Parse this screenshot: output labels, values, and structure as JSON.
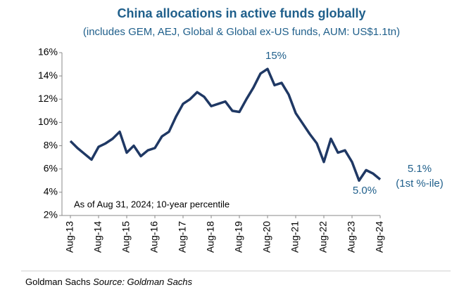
{
  "chart_data": {
    "type": "line",
    "title": "China allocations in active funds globally",
    "subtitle": "(includes GEM, AEJ, Global & Global ex-US funds, AUM: US$1.1tn)",
    "x": [
      "2013-08",
      "2013-11",
      "2014-02",
      "2014-05",
      "2014-08",
      "2014-11",
      "2015-02",
      "2015-05",
      "2015-08",
      "2015-11",
      "2016-02",
      "2016-05",
      "2016-08",
      "2016-11",
      "2017-02",
      "2017-05",
      "2017-08",
      "2017-11",
      "2018-02",
      "2018-05",
      "2018-08",
      "2018-11",
      "2019-02",
      "2019-05",
      "2019-08",
      "2019-11",
      "2020-02",
      "2020-05",
      "2020-08",
      "2020-11",
      "2021-02",
      "2021-05",
      "2021-08",
      "2021-11",
      "2022-02",
      "2022-05",
      "2022-08",
      "2022-11",
      "2023-02",
      "2023-05",
      "2023-08",
      "2023-11",
      "2024-02",
      "2024-05",
      "2024-08"
    ],
    "series": [
      {
        "name": "China allocation",
        "color": "#1f3864",
        "values": [
          8.4,
          7.8,
          7.3,
          6.8,
          7.9,
          8.2,
          8.6,
          9.2,
          7.4,
          8.0,
          7.1,
          7.6,
          7.8,
          8.8,
          9.2,
          10.5,
          11.6,
          12.0,
          12.6,
          12.2,
          11.4,
          11.6,
          11.8,
          11.0,
          10.9,
          12.0,
          13.0,
          14.2,
          14.6,
          13.2,
          13.4,
          12.4,
          10.8,
          9.9,
          9.0,
          8.2,
          6.6,
          8.6,
          7.4,
          7.6,
          6.6,
          5.0,
          5.9,
          5.6,
          5.1
        ]
      }
    ],
    "xlim": [
      "2013-08",
      "2024-08"
    ],
    "xticks": [
      {
        "value": "2013-08",
        "label": "Aug-13"
      },
      {
        "value": "2014-08",
        "label": "Aug-14"
      },
      {
        "value": "2015-08",
        "label": "Aug-15"
      },
      {
        "value": "2016-08",
        "label": "Aug-16"
      },
      {
        "value": "2017-08",
        "label": "Aug-17"
      },
      {
        "value": "2018-08",
        "label": "Aug-18"
      },
      {
        "value": "2019-08",
        "label": "Aug-19"
      },
      {
        "value": "2020-08",
        "label": "Aug-20"
      },
      {
        "value": "2021-08",
        "label": "Aug-21"
      },
      {
        "value": "2022-08",
        "label": "Aug-22"
      },
      {
        "value": "2023-08",
        "label": "Aug-23"
      },
      {
        "value": "2024-08",
        "label": "Aug-24"
      }
    ],
    "ylim": [
      2,
      16
    ],
    "yticks": [
      {
        "value": 2,
        "label": "2%"
      },
      {
        "value": 4,
        "label": "4%"
      },
      {
        "value": 6,
        "label": "6%"
      },
      {
        "value": 8,
        "label": "8%"
      },
      {
        "value": 10,
        "label": "10%"
      },
      {
        "value": 12,
        "label": "12%"
      },
      {
        "value": 14,
        "label": "14%"
      },
      {
        "value": 16,
        "label": "16%"
      }
    ],
    "grid": false,
    "annotations": [
      "15%",
      "5.1%",
      "(1st %-ile)",
      "5.0%",
      "As of Aug 31, 2024; 10-year percentile"
    ]
  },
  "footer": {
    "credit": "Goldman Sachs",
    "source": "Source: Goldman Sachs"
  }
}
